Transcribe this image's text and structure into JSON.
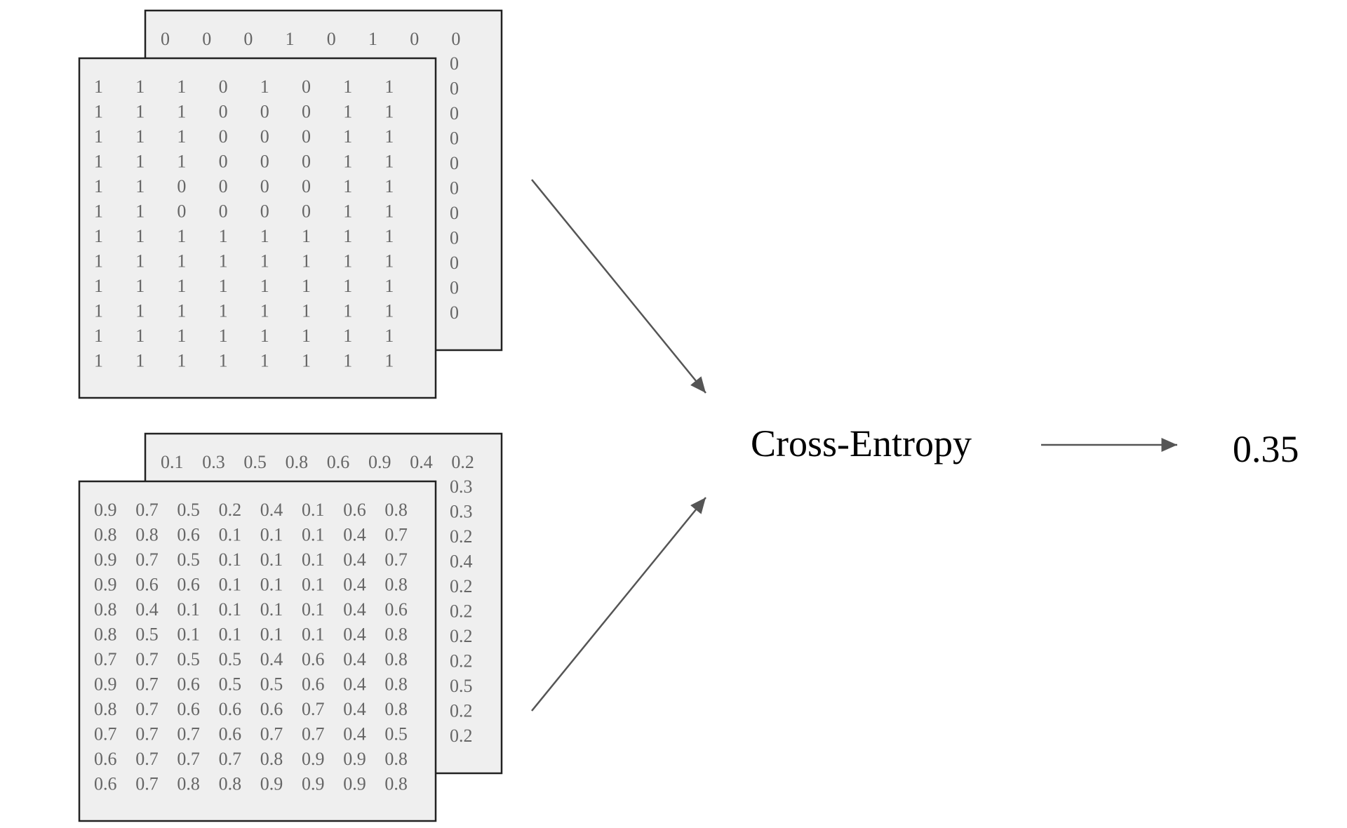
{
  "masks": {
    "back_top_row": [
      "0",
      "0",
      "0",
      "1",
      "0",
      "1",
      "0",
      "0"
    ],
    "back_right_col": [
      "0",
      "0",
      "0",
      "0",
      "0",
      "0",
      "0",
      "0",
      "0",
      "0",
      "0"
    ],
    "front_rows": [
      [
        "1",
        "1",
        "1",
        "0",
        "1",
        "0",
        "1",
        "1"
      ],
      [
        "1",
        "1",
        "1",
        "0",
        "0",
        "0",
        "1",
        "1"
      ],
      [
        "1",
        "1",
        "1",
        "0",
        "0",
        "0",
        "1",
        "1"
      ],
      [
        "1",
        "1",
        "1",
        "0",
        "0",
        "0",
        "1",
        "1"
      ],
      [
        "1",
        "1",
        "0",
        "0",
        "0",
        "0",
        "1",
        "1"
      ],
      [
        "1",
        "1",
        "0",
        "0",
        "0",
        "0",
        "1",
        "1"
      ],
      [
        "1",
        "1",
        "1",
        "1",
        "1",
        "1",
        "1",
        "1"
      ],
      [
        "1",
        "1",
        "1",
        "1",
        "1",
        "1",
        "1",
        "1"
      ],
      [
        "1",
        "1",
        "1",
        "1",
        "1",
        "1",
        "1",
        "1"
      ],
      [
        "1",
        "1",
        "1",
        "1",
        "1",
        "1",
        "1",
        "1"
      ],
      [
        "1",
        "1",
        "1",
        "1",
        "1",
        "1",
        "1",
        "1"
      ],
      [
        "1",
        "1",
        "1",
        "1",
        "1",
        "1",
        "1",
        "1"
      ]
    ]
  },
  "predictions": {
    "back_top_row": [
      "0.1",
      "0.3",
      "0.5",
      "0.8",
      "0.6",
      "0.9",
      "0.4",
      "0.2"
    ],
    "back_right_col": [
      "0.3",
      "0.3",
      "0.2",
      "0.4",
      "0.2",
      "0.2",
      "0.2",
      "0.2",
      "0.5",
      "0.2",
      "0.2"
    ],
    "front_rows": [
      [
        "0.9",
        "0.7",
        "0.5",
        "0.2",
        "0.4",
        "0.1",
        "0.6",
        "0.8"
      ],
      [
        "0.8",
        "0.8",
        "0.6",
        "0.1",
        "0.1",
        "0.1",
        "0.4",
        "0.7"
      ],
      [
        "0.9",
        "0.7",
        "0.5",
        "0.1",
        "0.1",
        "0.1",
        "0.4",
        "0.7"
      ],
      [
        "0.9",
        "0.6",
        "0.6",
        "0.1",
        "0.1",
        "0.1",
        "0.4",
        "0.8"
      ],
      [
        "0.8",
        "0.4",
        "0.1",
        "0.1",
        "0.1",
        "0.1",
        "0.4",
        "0.6"
      ],
      [
        "0.8",
        "0.5",
        "0.1",
        "0.1",
        "0.1",
        "0.1",
        "0.4",
        "0.8"
      ],
      [
        "0.7",
        "0.7",
        "0.5",
        "0.5",
        "0.4",
        "0.6",
        "0.4",
        "0.8"
      ],
      [
        "0.9",
        "0.7",
        "0.6",
        "0.5",
        "0.5",
        "0.6",
        "0.4",
        "0.8"
      ],
      [
        "0.8",
        "0.7",
        "0.6",
        "0.6",
        "0.6",
        "0.7",
        "0.4",
        "0.8"
      ],
      [
        "0.7",
        "0.7",
        "0.7",
        "0.6",
        "0.7",
        "0.7",
        "0.4",
        "0.5"
      ],
      [
        "0.6",
        "0.7",
        "0.7",
        "0.7",
        "0.8",
        "0.9",
        "0.9",
        "0.8"
      ],
      [
        "0.6",
        "0.7",
        "0.8",
        "0.8",
        "0.9",
        "0.9",
        "0.9",
        "0.8"
      ]
    ]
  },
  "loss": {
    "label": "Cross-Entropy",
    "value": "0.35"
  },
  "colors": {
    "sheet_fill": "#efefef",
    "sheet_border": "#222222",
    "cell_text": "#666666",
    "arrow": "#555555"
  }
}
